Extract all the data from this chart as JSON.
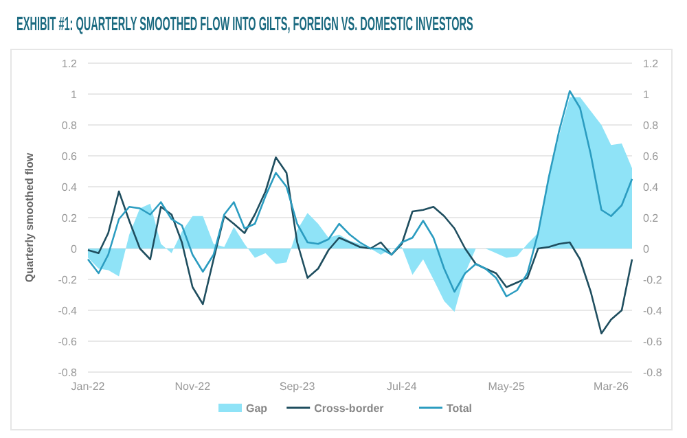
{
  "chart_data": {
    "type": "line",
    "title": "EXHIBIT #1: QUARTERLY SMOOTHED FLOW INTO GILTS, FOREIGN VS. DOMESTIC INVESTORS",
    "ylabel": "Quarterly smoothed flow",
    "x": [
      "2022-01",
      "2022-02",
      "2022-03",
      "2022-04",
      "2022-05",
      "2022-06",
      "2022-07",
      "2022-08",
      "2022-09",
      "2022-10",
      "2022-11",
      "2022-12",
      "2023-01",
      "2023-02",
      "2023-03",
      "2023-04",
      "2023-05",
      "2023-06",
      "2023-07",
      "2023-08",
      "2023-09",
      "2023-10",
      "2023-11",
      "2023-12",
      "2024-01",
      "2024-02",
      "2024-03",
      "2024-04",
      "2024-05",
      "2024-06",
      "2024-07",
      "2024-08",
      "2024-09",
      "2024-10",
      "2024-11",
      "2024-12",
      "2025-01",
      "2025-02",
      "2025-03",
      "2025-04",
      "2025-05",
      "2025-06",
      "2025-07",
      "2025-08",
      "2025-09",
      "2025-10",
      "2025-11",
      "2025-12",
      "2026-01",
      "2026-02",
      "2026-03",
      "2026-04",
      "2026-05"
    ],
    "series": [
      {
        "name": "Gap",
        "type": "area",
        "color": "#8fe3f7",
        "values": [
          -0.06,
          -0.13,
          -0.14,
          -0.18,
          0.09,
          0.26,
          0.29,
          0.03,
          -0.03,
          0.11,
          0.21,
          0.21,
          0.03,
          0.01,
          0.14,
          0.03,
          -0.06,
          -0.03,
          -0.1,
          -0.09,
          0.12,
          0.23,
          0.16,
          0.07,
          0.09,
          0.05,
          0.03,
          0.0,
          -0.04,
          0.0,
          0.01,
          -0.17,
          -0.07,
          -0.2,
          -0.34,
          -0.41,
          -0.16,
          0.0,
          0.0,
          -0.03,
          -0.06,
          -0.05,
          0.03,
          0.1,
          0.45,
          0.73,
          0.98,
          0.98,
          0.89,
          0.8,
          0.67,
          0.68,
          0.52
        ]
      },
      {
        "name": "Cross-border",
        "type": "line",
        "color": "#1f4e5f",
        "values": [
          -0.01,
          -0.03,
          0.1,
          0.37,
          0.18,
          0.0,
          -0.07,
          0.27,
          0.22,
          0.04,
          -0.25,
          -0.36,
          -0.07,
          0.21,
          0.16,
          0.1,
          0.22,
          0.37,
          0.59,
          0.49,
          0.04,
          -0.19,
          -0.13,
          -0.01,
          0.07,
          0.04,
          0.01,
          0.0,
          0.04,
          -0.04,
          0.03,
          0.24,
          0.25,
          0.27,
          0.21,
          0.13,
          0.0,
          -0.1,
          -0.13,
          -0.16,
          -0.25,
          -0.22,
          -0.19,
          0.0,
          0.01,
          0.03,
          0.04,
          -0.07,
          -0.28,
          -0.55,
          -0.46,
          -0.4,
          -0.07
        ]
      },
      {
        "name": "Total",
        "type": "line",
        "color": "#2b9cc0",
        "values": [
          -0.07,
          -0.16,
          -0.04,
          0.19,
          0.27,
          0.26,
          0.22,
          0.3,
          0.19,
          0.15,
          -0.04,
          -0.15,
          -0.04,
          0.22,
          0.3,
          0.13,
          0.16,
          0.34,
          0.49,
          0.4,
          0.16,
          0.04,
          0.03,
          0.06,
          0.16,
          0.09,
          0.04,
          0.0,
          0.0,
          -0.04,
          0.04,
          0.07,
          0.18,
          0.07,
          -0.13,
          -0.28,
          -0.16,
          -0.1,
          -0.13,
          -0.19,
          -0.31,
          -0.27,
          -0.16,
          0.1,
          0.46,
          0.76,
          1.02,
          0.91,
          0.61,
          0.25,
          0.21,
          0.28,
          0.45
        ]
      }
    ],
    "xlim": [
      "2022-01",
      "2026-05"
    ],
    "xticks": [
      {
        "value": "2022-01",
        "label": "Jan-22"
      },
      {
        "value": "2022-11",
        "label": "Nov-22"
      },
      {
        "value": "2023-09",
        "label": "Sep-23"
      },
      {
        "value": "2024-07",
        "label": "Jul-24"
      },
      {
        "value": "2025-05",
        "label": "May-25"
      },
      {
        "value": "2026-03",
        "label": "Mar-26"
      }
    ],
    "ylim": [
      -0.8,
      1.2
    ],
    "yticks": [
      -0.8,
      -0.6,
      -0.4,
      -0.2,
      0,
      0.2,
      0.4,
      0.6,
      0.8,
      1,
      1.2
    ],
    "y2lim": [
      -0.8,
      1.2
    ],
    "y2ticks": [
      -0.8,
      -0.6,
      -0.4,
      -0.2,
      0,
      0.2,
      0.4,
      0.6,
      0.8,
      1,
      1.2
    ],
    "grid": "y",
    "legend": "bottom",
    "marker": "none",
    "line_style": "solid"
  }
}
